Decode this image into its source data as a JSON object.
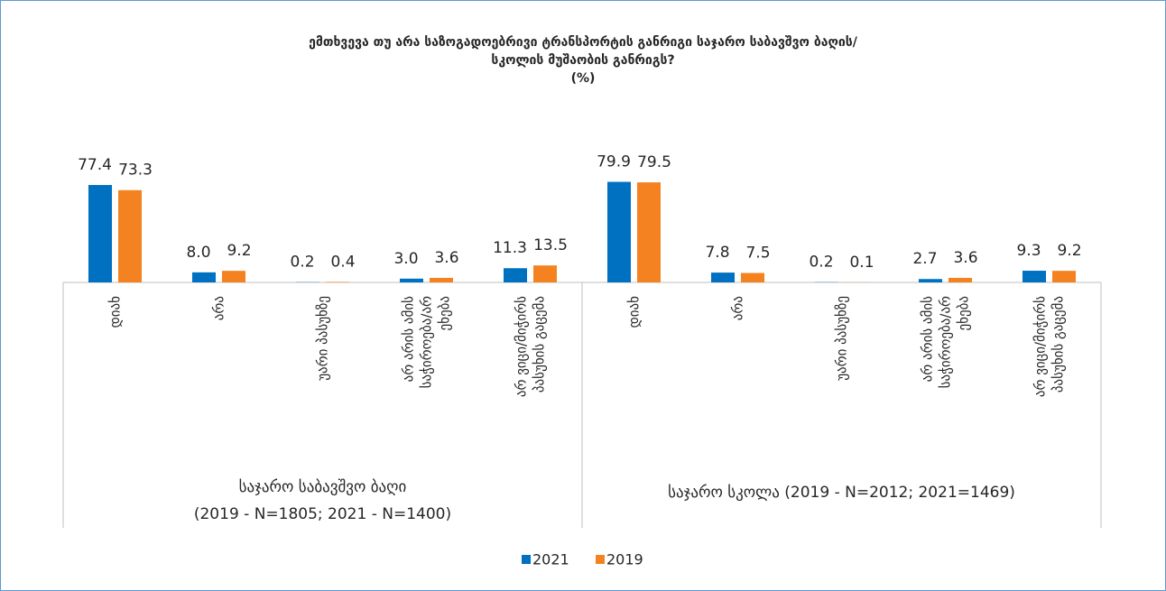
{
  "chart_data": {
    "type": "bar",
    "title": [
      "ემთხვევა თუ არა საზოგადოებრივი ტრანსპორტის განრიგი  საჯარო საბავშვო ბაღის/",
      "სკოლის მუშაობის განრიგს?",
      "(%)"
    ],
    "groups": [
      {
        "label": [
          "საჯარო საბავშვო ბაღი",
          "(2019 - N=1805; 2021 - N=1400)"
        ],
        "categories": [
          "დიახ",
          "არა",
          "უარი პასუხზე",
          "არ არის ამის საჭიროება/არ ეხება",
          "არ ვიცი/მიჭირს პასუხის გაცემა"
        ]
      },
      {
        "label": [
          "საჯარო სკოლა (2019 - N=2012; 2021=1469)"
        ],
        "categories": [
          "დიახ",
          "არა",
          "უარი პასუხზე",
          "არ არის ამის საჭიროება/არ ეხება",
          "არ ვიცი/მიჭირს პასუხის გაცემა"
        ]
      }
    ],
    "series": [
      {
        "name": "2021",
        "color": "#0070c0",
        "values": [
          77.4,
          8.0,
          0.2,
          3.0,
          11.3,
          79.9,
          7.8,
          0.2,
          2.7,
          9.3
        ],
        "value_labels": [
          "77.4",
          "8.0",
          "0.2",
          "3.0",
          "11.3",
          "79.9",
          "7.8",
          "0.2",
          "2.7",
          "9.3"
        ]
      },
      {
        "name": "2019",
        "color": "#f58220",
        "values": [
          73.3,
          9.2,
          0.4,
          3.6,
          13.5,
          79.5,
          7.5,
          0.1,
          3.6,
          9.2
        ],
        "value_labels": [
          "73.3",
          "9.2",
          "0.4",
          "3.6",
          "13.5",
          "79.5",
          "7.5",
          "0.1",
          "3.6",
          "9.2"
        ]
      }
    ],
    "legend": "bottom"
  }
}
